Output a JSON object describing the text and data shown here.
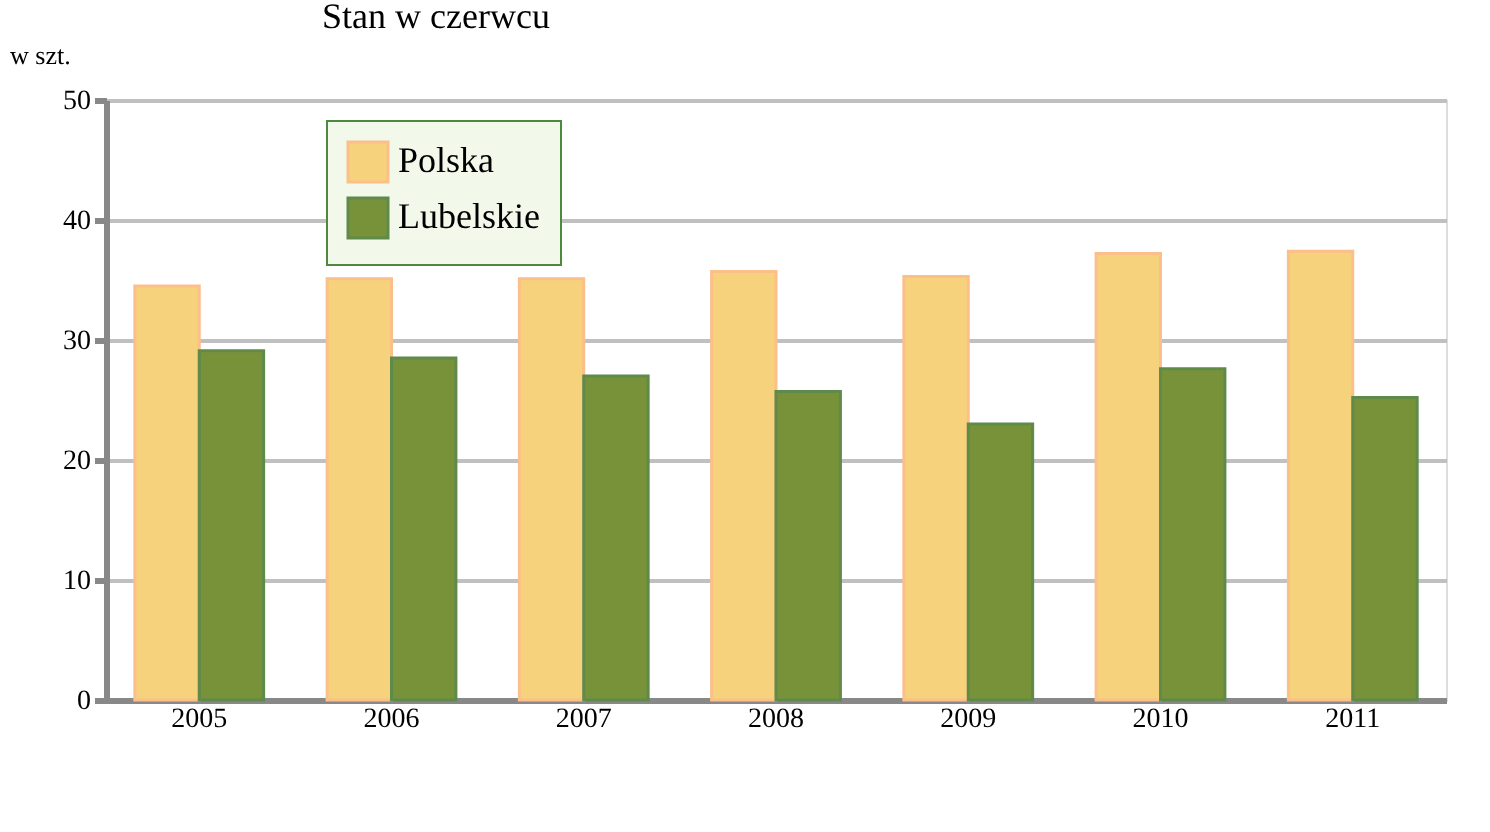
{
  "chart_data": {
    "type": "bar",
    "title": "Stan w czerwcu",
    "ylabel": "w szt.",
    "categories": [
      "2005",
      "2006",
      "2007",
      "2008",
      "2009",
      "2010",
      "2011"
    ],
    "series": [
      {
        "name": "Polska",
        "color": "#f7d27c",
        "values": [
          34.5,
          35.1,
          35.1,
          35.7,
          35.3,
          37.2,
          37.4
        ]
      },
      {
        "name": "Lubelskie",
        "color": "#78923a",
        "values": [
          29.1,
          28.5,
          27.0,
          25.7,
          23.0,
          27.6,
          25.2
        ]
      }
    ],
    "ylim": [
      0,
      50
    ],
    "yticks": [
      0,
      10,
      20,
      30,
      40,
      50
    ],
    "grid": "y",
    "legend": "top left"
  }
}
